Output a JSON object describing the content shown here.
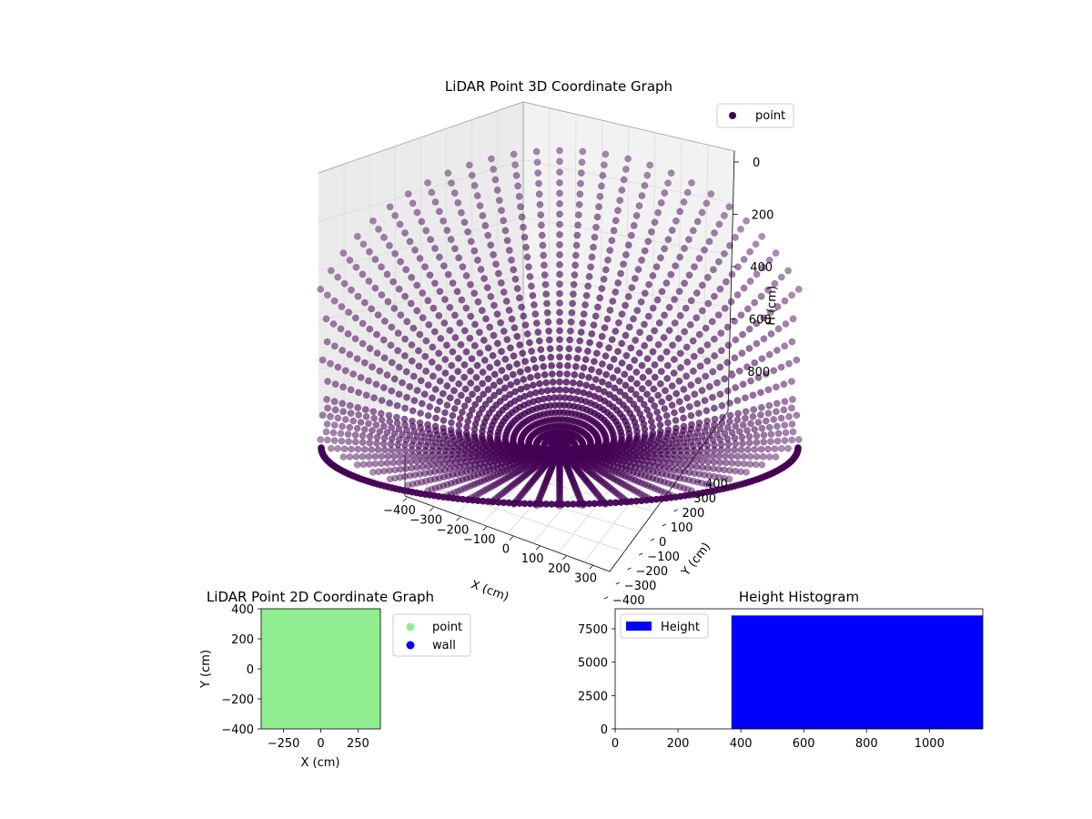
{
  "chart_data": [
    {
      "type": "scatter",
      "projection": "3d",
      "title": "LiDAR Point 3D Coordinate Graph",
      "xlabel": "X (cm)",
      "ylabel": "Y (cm)",
      "zlabel": "H (cm)",
      "x_ticks": [
        "−400",
        "−300",
        "−200",
        "−100",
        "0",
        "100",
        "200",
        "300"
      ],
      "y_ticks": [
        "−400",
        "−300",
        "−200",
        "−100",
        "0",
        "100",
        "200",
        "300",
        "400"
      ],
      "z_ticks": [
        "0",
        "200",
        "400",
        "600",
        "800"
      ],
      "xlim": [
        -400,
        400
      ],
      "ylim": [
        -400,
        400
      ],
      "zlim": [
        0,
        1000
      ],
      "z_inverted": true,
      "grid": true,
      "legend": {
        "position": "top-right",
        "entries": [
          {
            "name": "point",
            "color": "#440154"
          }
        ]
      },
      "series": [
        {
          "name": "point",
          "color": "#440154",
          "shape": "bowl",
          "radial_lines": 72
        }
      ]
    },
    {
      "type": "scatter",
      "title": "LiDAR Point 2D Coordinate Graph",
      "xlabel": "X (cm)",
      "ylabel": "Y (cm)",
      "x_ticks": [
        "−250",
        "0",
        "250"
      ],
      "y_ticks": [
        "400",
        "200",
        "0",
        "−200",
        "−400"
      ],
      "xlim": [
        -400,
        400
      ],
      "ylim": [
        -400,
        400
      ],
      "legend": {
        "position": "outside-right",
        "entries": [
          {
            "name": "point",
            "color": "#90ee90"
          },
          {
            "name": "wall",
            "color": "#0000ff"
          }
        ]
      },
      "series": [
        {
          "name": "point",
          "color": "#90ee90",
          "coverage": "full"
        },
        {
          "name": "wall",
          "color": "#0000ff"
        }
      ]
    },
    {
      "type": "bar",
      "title": "Height Histogram",
      "x_ticks": [
        "0",
        "200",
        "400",
        "600",
        "800",
        "1000"
      ],
      "y_ticks": [
        "0",
        "2500",
        "5000",
        "7500"
      ],
      "xlim": [
        0,
        1170
      ],
      "ylim": [
        0,
        9000
      ],
      "legend": {
        "position": "top-left",
        "entries": [
          {
            "name": "Height",
            "color": "#0000ff"
          }
        ]
      },
      "bars": [
        {
          "x_start": 370,
          "x_end": 1170,
          "value": 8500,
          "color": "#0000ff"
        }
      ]
    }
  ]
}
